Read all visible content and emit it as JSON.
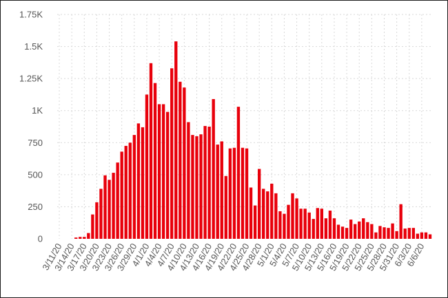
{
  "chart_data": {
    "type": "bar",
    "title": "",
    "xlabel": "",
    "ylabel": "",
    "ylim": [
      0,
      1750
    ],
    "yticks": [
      0,
      250,
      500,
      750,
      1000,
      1250,
      1500,
      1750
    ],
    "ytick_labels": [
      "0",
      "250",
      "500",
      "750",
      "1K",
      "1.25K",
      "1.5K",
      "1.75K"
    ],
    "grid": true,
    "bar_color": "#e8000b",
    "x_tick_labels": [
      "3/11/20",
      "3/14/20",
      "3/17/20",
      "3/20/20",
      "3/23/20",
      "3/26/20",
      "3/29/20",
      "4/1/20",
      "4/4/20",
      "4/7/20",
      "4/10/20",
      "4/13/20",
      "4/16/20",
      "4/19/20",
      "4/22/20",
      "4/25/20",
      "4/28/20",
      "5/1/20",
      "5/4/20",
      "5/7/20",
      "5/10/20",
      "5/13/20",
      "5/16/20",
      "5/19/20",
      "5/22/20",
      "5/25/20",
      "5/28/20",
      "5/31/20",
      "6/3/20",
      "6/6/20"
    ],
    "x_tick_every": 3,
    "values": [
      0,
      0,
      0,
      0,
      10,
      15,
      15,
      45,
      190,
      285,
      390,
      495,
      460,
      515,
      595,
      680,
      725,
      750,
      810,
      900,
      870,
      1125,
      1370,
      1215,
      1050,
      1050,
      990,
      1330,
      1540,
      1225,
      1180,
      910,
      810,
      800,
      815,
      880,
      875,
      1090,
      735,
      760,
      490,
      705,
      710,
      1030,
      710,
      705,
      400,
      260,
      545,
      390,
      370,
      430,
      355,
      215,
      195,
      265,
      355,
      315,
      235,
      235,
      205,
      155,
      240,
      235,
      160,
      220,
      160,
      110,
      95,
      85,
      150,
      115,
      135,
      160,
      130,
      115,
      50,
      100,
      90,
      85,
      120,
      60,
      270,
      80,
      85,
      85,
      40,
      50,
      50,
      35
    ]
  }
}
